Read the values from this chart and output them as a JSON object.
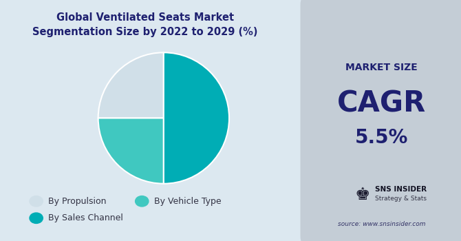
{
  "title": "Global Ventilated Seats Market\nSegmentation Size by 2022 to 2029 (%)",
  "title_fontsize": 10.5,
  "pie_values": [
    25,
    25,
    50
  ],
  "pie_colors": [
    "#d0dfe8",
    "#40c8c0",
    "#00adb5"
  ],
  "legend_colors": [
    "#d0dfe8",
    "#40c8c0",
    "#00adb5"
  ],
  "legend_labels": [
    "By Propulsion",
    "By Vehicle Type",
    "By Sales Channel"
  ],
  "left_bg": "#dce8f0",
  "right_bg": "#c4cdd6",
  "market_size_label": "MARKET SIZE",
  "cagr_label": "CAGR",
  "cagr_value": "5.5%",
  "text_color": "#1e2070",
  "source_text": "source: www.snsinsider.com",
  "startangle": 90,
  "explode": [
    0,
    0,
    0
  ]
}
